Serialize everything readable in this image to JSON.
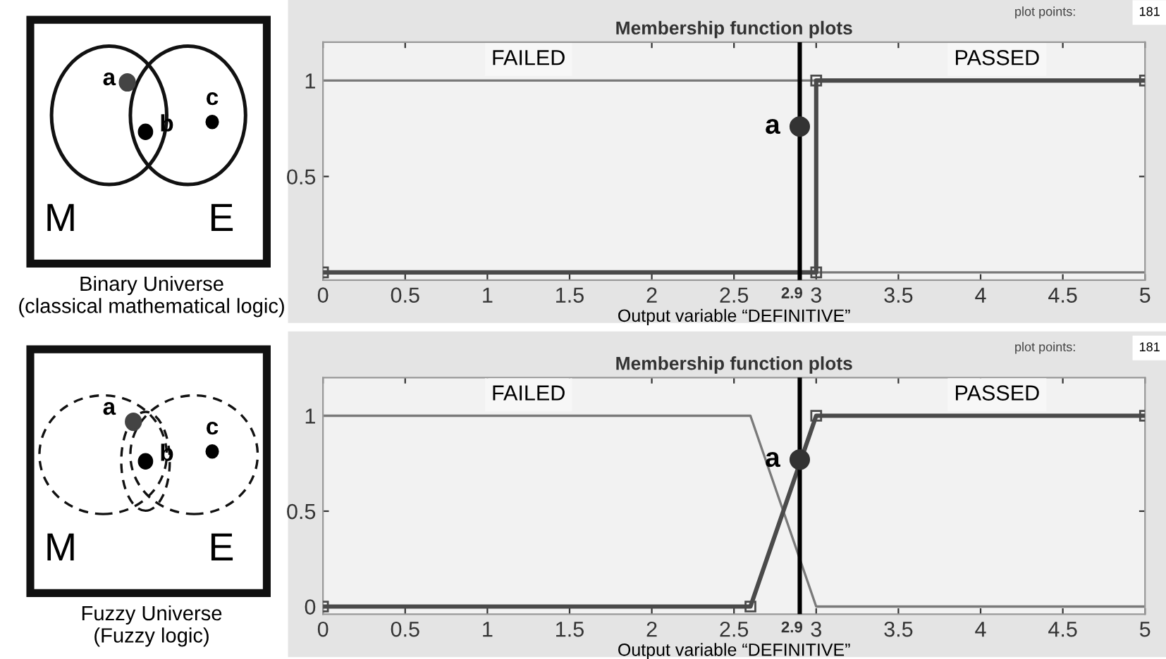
{
  "chart_data": [
    {
      "type": "other",
      "annotations": [
        "a",
        "b",
        "c",
        "M",
        "E",
        "Binary Universe\n(classical mathematical logic)"
      ]
    },
    {
      "type": "line",
      "title": "Membership function plots",
      "xlabel": "Output variable “DEFINITIVE”",
      "series": [
        {
          "name": "FAILED",
          "color": "#7a7a7a",
          "x": [
            0,
            3,
            3,
            5
          ],
          "values": [
            1,
            1,
            0,
            0
          ]
        },
        {
          "name": "PASSED",
          "color": "#4a4a4a",
          "x": [
            0,
            3,
            3,
            5
          ],
          "values": [
            0,
            0,
            1,
            1
          ],
          "marker": "square"
        },
        {
          "type": "scatter",
          "color": "#333333",
          "x": [
            2.9
          ],
          "values": [
            0.76
          ]
        }
      ],
      "xlim": [
        0,
        5
      ],
      "ylim": [
        -0.04,
        1.2
      ],
      "xticks": [
        0,
        0.5,
        1,
        1.5,
        2,
        2.5,
        2.9,
        3,
        3.5,
        4,
        4.5,
        5
      ],
      "yticks": [
        0.5,
        1
      ],
      "ref_lines": [
        {
          "axis": "x",
          "value": 2.9,
          "color": "#000000"
        }
      ],
      "annotations": [
        "plot points:",
        "181",
        {
          "text": "a",
          "x": 2.9,
          "y": 0.76
        }
      ],
      "grid": false,
      "legend": false
    },
    {
      "type": "other",
      "annotations": [
        "a",
        "b",
        "c",
        "M",
        "E",
        "Fuzzy Universe\n(Fuzzy logic)"
      ]
    },
    {
      "type": "line",
      "title": "Membership function plots",
      "xlabel": "Output variable “DEFINITIVE”",
      "series": [
        {
          "name": "FAILED",
          "color": "#7a7a7a",
          "x": [
            0,
            2.6,
            3,
            5
          ],
          "values": [
            1,
            1,
            0,
            0
          ]
        },
        {
          "name": "PASSED",
          "color": "#4a4a4a",
          "x": [
            0,
            2.6,
            3,
            5
          ],
          "values": [
            0,
            0,
            1,
            1
          ],
          "marker": "square"
        },
        {
          "type": "scatter",
          "color": "#333333",
          "x": [
            2.9
          ],
          "values": [
            0.77
          ]
        }
      ],
      "xlim": [
        0,
        5
      ],
      "ylim": [
        -0.04,
        1.2
      ],
      "xticks": [
        0,
        0.5,
        1,
        1.5,
        2,
        2.5,
        2.9,
        3,
        3.5,
        4,
        4.5,
        5
      ],
      "yticks": [
        0,
        0.5,
        1
      ],
      "ref_lines": [
        {
          "axis": "x",
          "value": 2.9,
          "color": "#000000"
        }
      ],
      "annotations": [
        "plot points:",
        "181",
        {
          "text": "a",
          "x": 2.9,
          "y": 0.77
        }
      ],
      "grid": false,
      "legend": false
    }
  ]
}
